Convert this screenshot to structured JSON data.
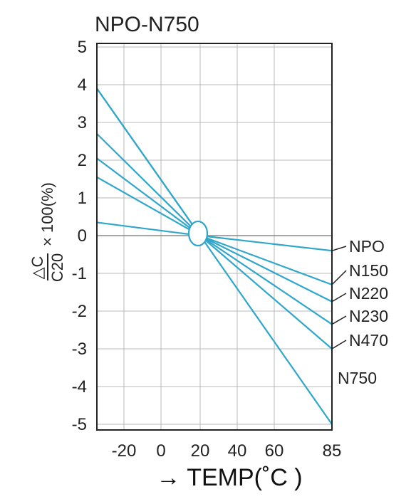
{
  "chart_data": {
    "type": "line",
    "title": "NPO-N750",
    "xlabel": "→ TEMP(˚C )",
    "ylabel_fraction_numerator": "△C",
    "ylabel_fraction_denominator": "C20",
    "ylabel_suffix": "× 100(%)",
    "x_ticks": [
      "-20",
      "0",
      "20",
      "40",
      "60",
      "85"
    ],
    "y_ticks": [
      "5",
      "4",
      "3",
      "2",
      "1",
      "0",
      "-1",
      "-2",
      "-3",
      "-4",
      "-5"
    ],
    "xlim": [
      -30,
      85
    ],
    "ylim": [
      -6,
      6
    ],
    "grid": true,
    "series_color": "#2fa6cc",
    "x": [
      -30,
      20,
      85
    ],
    "series": [
      {
        "name": "NPO",
        "values": [
          0.35,
          0,
          -0.4
        ]
      },
      {
        "name": "N150",
        "values": [
          1.55,
          0,
          -1.3
        ]
      },
      {
        "name": "N220",
        "values": [
          2.05,
          0,
          -1.75
        ]
      },
      {
        "name": "N230",
        "values": [
          2.7,
          0,
          -2.35
        ]
      },
      {
        "name": "N470",
        "values": [
          3.9,
          0,
          -3.0
        ]
      },
      {
        "name": "N750",
        "values": [
          3.9,
          0,
          -5.0
        ]
      }
    ],
    "annotation": "circle marking the 20°C reference point"
  }
}
